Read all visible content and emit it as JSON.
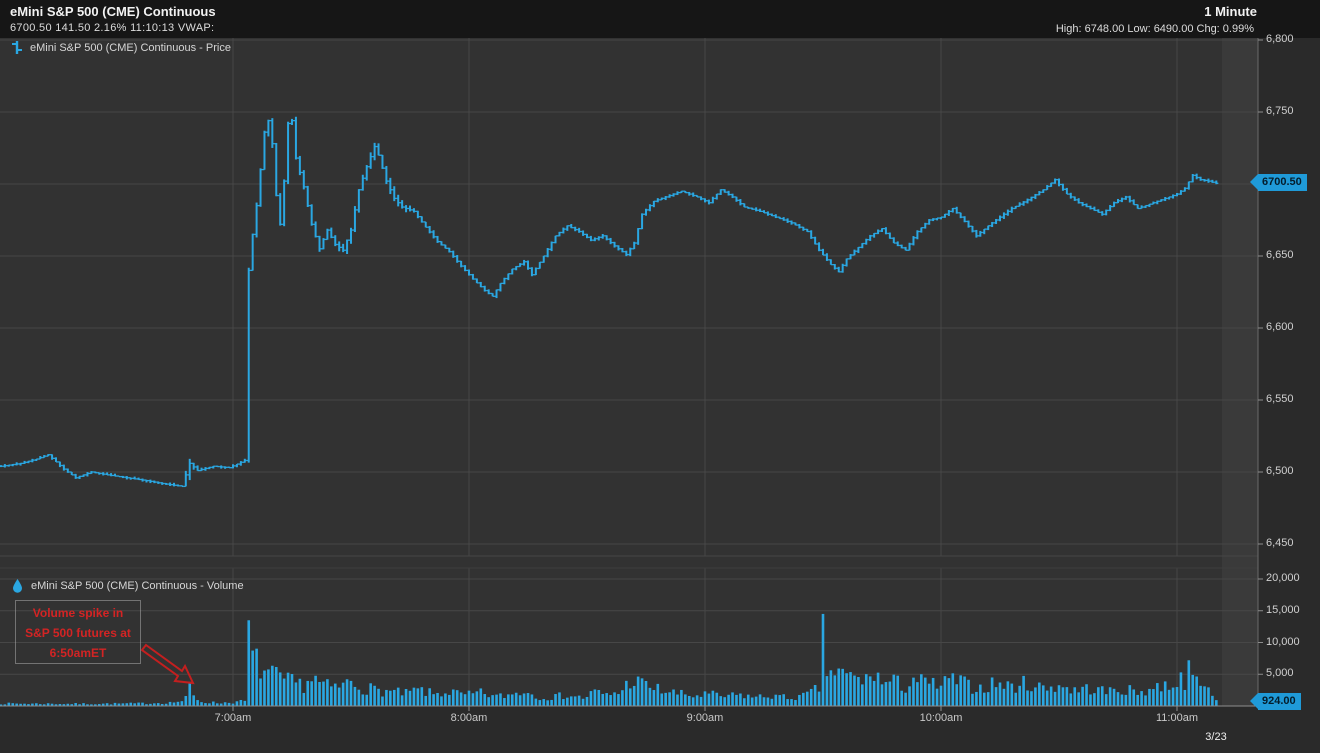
{
  "header": {
    "title": "eMini S&P 500 (CME) Continuous",
    "quote_line": "6700.50 141.50 2.16%  11:10:13  VWAP:",
    "interval": "1 Minute",
    "stats_line": "High: 6748.00 Low: 6490.00 Chg: 0.99%"
  },
  "price_pane": {
    "legend": "eMini S&P 500 (CME) Continuous - Price",
    "last_price_badge": "6700.50"
  },
  "volume_pane": {
    "legend": "eMini S&P 500 (CME) Continuous - Volume",
    "last_volume_badge": "924.00"
  },
  "annotation": {
    "text": "Volume spike in\nS&P 500 futures at\n6:50amET",
    "color": "#d32424"
  },
  "x_axis": {
    "date_label": "3/23"
  },
  "colors": {
    "bars": "#2aa7e2",
    "badge": "#1f9ad8",
    "plot_bg": "#323232",
    "grid": "#474747",
    "annotation_red": "#c41f1f"
  },
  "chart_data": [
    {
      "type": "bar",
      "subtype": "ohlc-1min",
      "title": "eMini S&P 500 (CME) Continuous - Price",
      "x_unit": "minutes after 6:00am",
      "x_ticks": [
        {
          "label": "7:00am",
          "minute": 60
        },
        {
          "label": "8:00am",
          "minute": 120
        },
        {
          "label": "9:00am",
          "minute": 180
        },
        {
          "label": "10:00am",
          "minute": 240
        },
        {
          "label": "11:00am",
          "minute": 300
        }
      ],
      "y_ticks": [
        {
          "label": "6,800",
          "value": 6800
        },
        {
          "label": "6,750",
          "value": 6750
        },
        {
          "label": "6,700",
          "value": 6700
        },
        {
          "label": "6,650",
          "value": 6650
        },
        {
          "label": "6,600",
          "value": 6600
        },
        {
          "label": "6,550",
          "value": 6550
        },
        {
          "label": "6,500",
          "value": 6500
        },
        {
          "label": "6,450",
          "value": 6450
        }
      ],
      "ylim": [
        6437,
        6806
      ],
      "high": 6748.0,
      "low": 6490.0,
      "last": 6700.5,
      "grid": true,
      "price_anchors": [
        [
          1,
          6504
        ],
        [
          6,
          6506
        ],
        [
          10,
          6509
        ],
        [
          13,
          6512
        ],
        [
          17,
          6502
        ],
        [
          20,
          6496
        ],
        [
          24,
          6500
        ],
        [
          28,
          6498
        ],
        [
          33,
          6496
        ],
        [
          38,
          6494
        ],
        [
          42,
          6492
        ],
        [
          47,
          6490
        ],
        [
          49,
          6506
        ],
        [
          51,
          6501
        ],
        [
          55,
          6504
        ],
        [
          59,
          6503
        ],
        [
          63,
          6508
        ],
        [
          64,
          6640
        ],
        [
          65,
          6665
        ],
        [
          66,
          6685
        ],
        [
          67,
          6710
        ],
        [
          68,
          6736
        ],
        [
          69,
          6744
        ],
        [
          70,
          6728
        ],
        [
          71,
          6692
        ],
        [
          72,
          6672
        ],
        [
          73,
          6702
        ],
        [
          74,
          6742
        ],
        [
          75,
          6744
        ],
        [
          76,
          6718
        ],
        [
          78,
          6698
        ],
        [
          80,
          6672
        ],
        [
          82,
          6655
        ],
        [
          84,
          6668
        ],
        [
          86,
          6658
        ],
        [
          88,
          6654
        ],
        [
          90,
          6668
        ],
        [
          92,
          6696
        ],
        [
          94,
          6712
        ],
        [
          96,
          6726
        ],
        [
          97,
          6720
        ],
        [
          99,
          6702
        ],
        [
          101,
          6690
        ],
        [
          103,
          6684
        ],
        [
          106,
          6681
        ],
        [
          109,
          6670
        ],
        [
          112,
          6660
        ],
        [
          115,
          6653
        ],
        [
          118,
          6643
        ],
        [
          121,
          6634
        ],
        [
          124,
          6626
        ],
        [
          126,
          6622
        ],
        [
          128,
          6631
        ],
        [
          131,
          6641
        ],
        [
          134,
          6646
        ],
        [
          136,
          6637
        ],
        [
          139,
          6650
        ],
        [
          142,
          6664
        ],
        [
          145,
          6671
        ],
        [
          148,
          6667
        ],
        [
          151,
          6661
        ],
        [
          154,
          6664
        ],
        [
          157,
          6657
        ],
        [
          160,
          6651
        ],
        [
          162,
          6659
        ],
        [
          164,
          6679
        ],
        [
          167,
          6688
        ],
        [
          170,
          6691
        ],
        [
          174,
          6695
        ],
        [
          178,
          6691
        ],
        [
          181,
          6687
        ],
        [
          184,
          6696
        ],
        [
          187,
          6691
        ],
        [
          190,
          6684
        ],
        [
          194,
          6681
        ],
        [
          198,
          6677
        ],
        [
          202,
          6673
        ],
        [
          206,
          6667
        ],
        [
          209,
          6654
        ],
        [
          212,
          6644
        ],
        [
          214,
          6639
        ],
        [
          216,
          6648
        ],
        [
          219,
          6656
        ],
        [
          222,
          6664
        ],
        [
          225,
          6669
        ],
        [
          228,
          6659
        ],
        [
          231,
          6654
        ],
        [
          234,
          6667
        ],
        [
          237,
          6675
        ],
        [
          240,
          6677
        ],
        [
          243,
          6683
        ],
        [
          246,
          6674
        ],
        [
          249,
          6664
        ],
        [
          252,
          6671
        ],
        [
          255,
          6677
        ],
        [
          258,
          6683
        ],
        [
          262,
          6689
        ],
        [
          266,
          6696
        ],
        [
          269,
          6703
        ],
        [
          272,
          6693
        ],
        [
          275,
          6687
        ],
        [
          278,
          6683
        ],
        [
          281,
          6679
        ],
        [
          284,
          6687
        ],
        [
          287,
          6691
        ],
        [
          290,
          6683
        ],
        [
          293,
          6686
        ],
        [
          296,
          6689
        ],
        [
          300,
          6693
        ],
        [
          302,
          6697
        ],
        [
          304,
          6706
        ],
        [
          306,
          6703
        ],
        [
          308,
          6702
        ],
        [
          310,
          6700.5
        ]
      ]
    },
    {
      "type": "bar",
      "subtype": "volume-1min",
      "title": "eMini S&P 500 (CME) Continuous - Volume",
      "y_ticks": [
        {
          "label": "20,000",
          "value": 20000
        },
        {
          "label": "15,000",
          "value": 15000
        },
        {
          "label": "10,000",
          "value": 10000
        },
        {
          "label": "5,000",
          "value": 5000
        },
        {
          "label": "0",
          "value": 0
        }
      ],
      "ylim": [
        0,
        20000
      ],
      "last": 924,
      "grid": true,
      "volume_envelope_anchors": [
        [
          1,
          400
        ],
        [
          20,
          350
        ],
        [
          35,
          400
        ],
        [
          44,
          550
        ],
        [
          47,
          800
        ],
        [
          48,
          1200
        ],
        [
          50,
          1500
        ],
        [
          52,
          700
        ],
        [
          56,
          500
        ],
        [
          60,
          600
        ],
        [
          63,
          800
        ],
        [
          65,
          8000
        ],
        [
          66,
          7000
        ],
        [
          68,
          5600
        ],
        [
          70,
          5000
        ],
        [
          72,
          4300
        ],
        [
          75,
          3800
        ],
        [
          78,
          3400
        ],
        [
          80,
          4600
        ],
        [
          83,
          3300
        ],
        [
          86,
          2900
        ],
        [
          90,
          3900
        ],
        [
          93,
          3000
        ],
        [
          96,
          2600
        ],
        [
          100,
          2300
        ],
        [
          104,
          2000
        ],
        [
          107,
          2600
        ],
        [
          111,
          1900
        ],
        [
          115,
          2300
        ],
        [
          119,
          1700
        ],
        [
          123,
          2100
        ],
        [
          127,
          1500
        ],
        [
          131,
          1900
        ],
        [
          134,
          2500
        ],
        [
          137,
          1600
        ],
        [
          141,
          1400
        ],
        [
          145,
          1800
        ],
        [
          149,
          1300
        ],
        [
          152,
          2300
        ],
        [
          155,
          1700
        ],
        [
          159,
          2500
        ],
        [
          161,
          4200
        ],
        [
          163,
          3800
        ],
        [
          166,
          3100
        ],
        [
          169,
          2500
        ],
        [
          173,
          2000
        ],
        [
          177,
          1600
        ],
        [
          181,
          1900
        ],
        [
          185,
          1500
        ],
        [
          189,
          1800
        ],
        [
          193,
          1400
        ],
        [
          197,
          1700
        ],
        [
          201,
          1300
        ],
        [
          205,
          1600
        ],
        [
          208,
          2500
        ],
        [
          210,
          3400
        ],
        [
          211,
          5800
        ],
        [
          213,
          5400
        ],
        [
          215,
          5000
        ],
        [
          218,
          4500
        ],
        [
          221,
          4100
        ],
        [
          223,
          5600
        ],
        [
          225,
          3600
        ],
        [
          228,
          3900
        ],
        [
          231,
          3100
        ],
        [
          233,
          4500
        ],
        [
          236,
          3600
        ],
        [
          240,
          3300
        ],
        [
          243,
          4300
        ],
        [
          246,
          3500
        ],
        [
          250,
          2900
        ],
        [
          254,
          3700
        ],
        [
          258,
          3100
        ],
        [
          262,
          3700
        ],
        [
          266,
          2900
        ],
        [
          270,
          3400
        ],
        [
          274,
          2500
        ],
        [
          278,
          2900
        ],
        [
          282,
          2300
        ],
        [
          286,
          2700
        ],
        [
          290,
          2200
        ],
        [
          294,
          2900
        ],
        [
          298,
          3500
        ],
        [
          301,
          4200
        ],
        [
          305,
          3600
        ],
        [
          307,
          3000
        ],
        [
          309,
          2200
        ],
        [
          310,
          924
        ]
      ],
      "volume_spikes": [
        {
          "minute": 49,
          "value": 3800,
          "time": "6:49am"
        },
        {
          "minute": 64,
          "value": 13500,
          "time": "7:04am"
        },
        {
          "minute": 210,
          "value": 14500,
          "time": "9:30am"
        },
        {
          "minute": 303,
          "value": 7200,
          "time": "11:03am"
        }
      ]
    }
  ]
}
